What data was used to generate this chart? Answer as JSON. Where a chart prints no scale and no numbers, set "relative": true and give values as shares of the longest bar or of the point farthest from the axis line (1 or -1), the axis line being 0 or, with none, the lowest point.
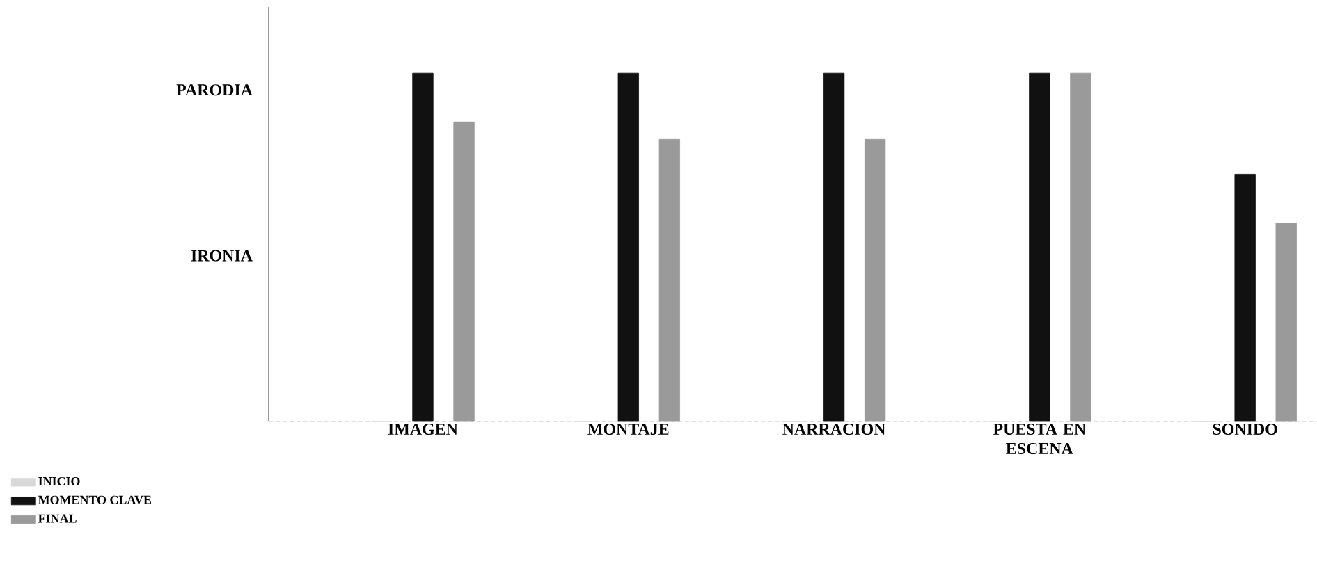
{
  "chart_data": {
    "type": "bar",
    "relative": true,
    "categories": [
      "IMAGEN",
      "MONTAJE",
      "NARRACION",
      "PUESTA EN ESCENA",
      "SONIDO"
    ],
    "series": [
      {
        "name": "INICIO",
        "color": "#d9d9d9",
        "values": [
          0,
          0,
          0,
          0,
          0
        ]
      },
      {
        "name": "MOMENTO CLAVE",
        "color": "#111111",
        "values": [
          1,
          1,
          1,
          1,
          0.71
        ]
      },
      {
        "name": "FINAL",
        "color": "#9a9a9a",
        "values": [
          0.86,
          0.81,
          0.81,
          1,
          0.57
        ]
      }
    ],
    "annotations": [
      "IRONIA",
      "PARODIA"
    ],
    "legend": "bottom left"
  }
}
